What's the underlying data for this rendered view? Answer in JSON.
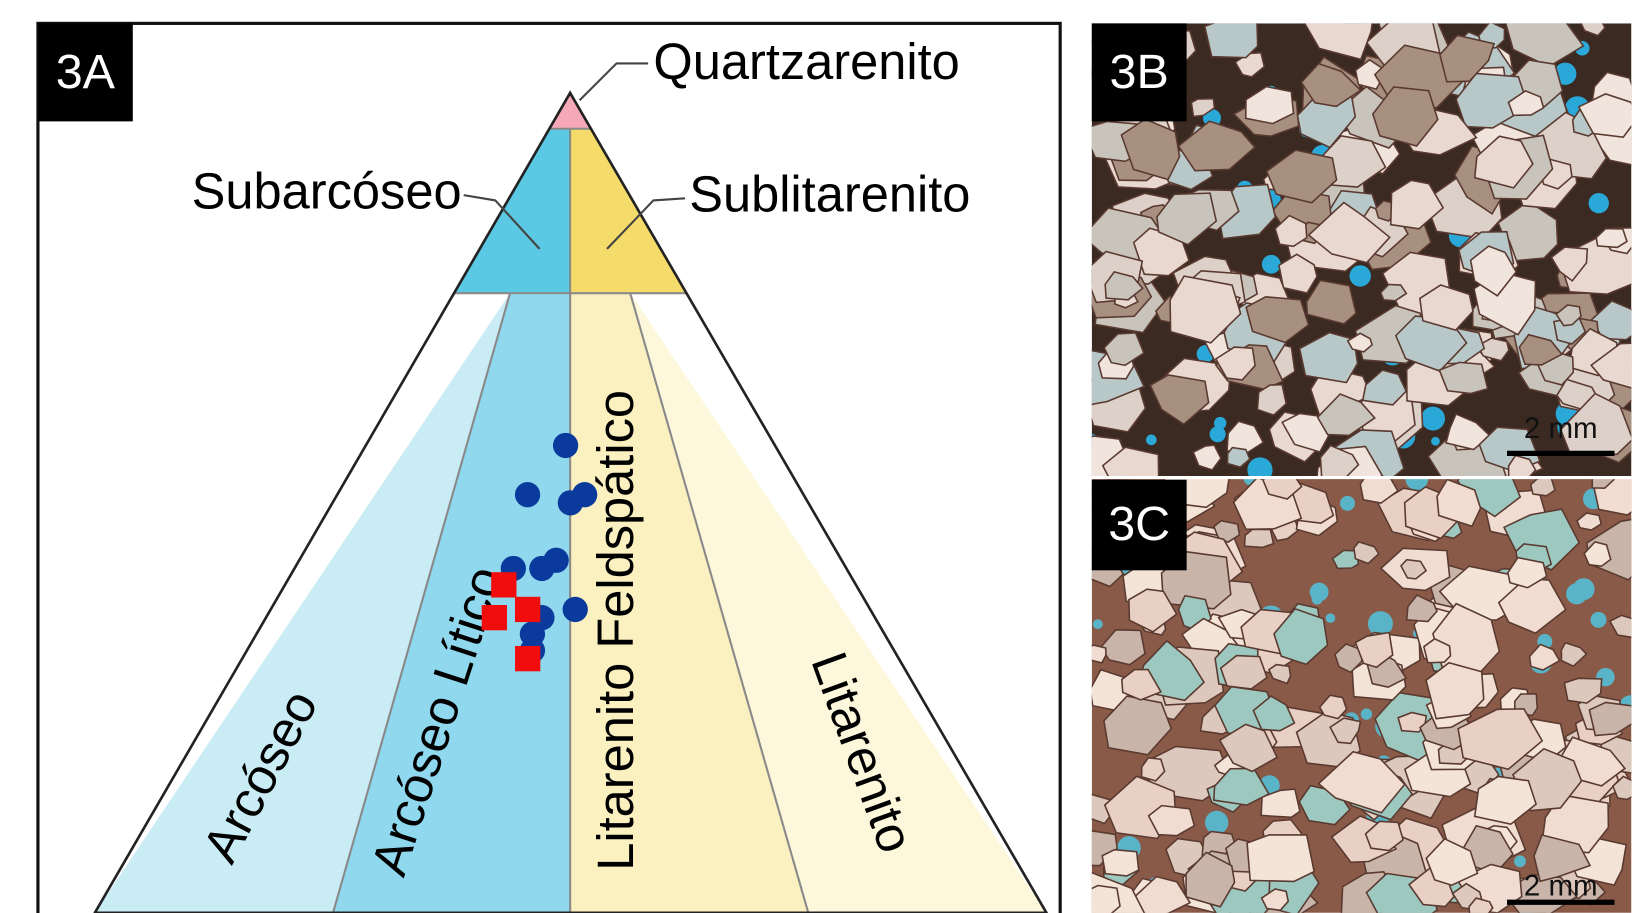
{
  "panels": {
    "a": {
      "label": "3A",
      "fields": {
        "quartzarenite": "Quartzarenito",
        "subarkose": "Subarcóseo",
        "sublitharenite": "Sublitarenito",
        "arkose": "Arcóseo",
        "lithic_arkose": "Arcóseo Lítico",
        "feldspathic_litharenite": "Litarenito Feldspático",
        "litharenite": "Litarenito"
      },
      "samples": [
        {
          "shape": "circle",
          "color": "#0a3a9c",
          "points": [
            {
              "Q": 57,
              "F": 22,
              "L": 21
            },
            {
              "Q": 51,
              "F": 29,
              "L": 20
            },
            {
              "Q": 51,
              "F": 23,
              "L": 26
            },
            {
              "Q": 50,
              "F": 25,
              "L": 25
            },
            {
              "Q": 43,
              "F": 30,
              "L": 27
            },
            {
              "Q": 42,
              "F": 35,
              "L": 23
            },
            {
              "Q": 42,
              "F": 32,
              "L": 26
            },
            {
              "Q": 37,
              "F": 31,
              "L": 32
            },
            {
              "Q": 36,
              "F": 35,
              "L": 29
            },
            {
              "Q": 34,
              "F": 37,
              "L": 29
            },
            {
              "Q": 32,
              "F": 38,
              "L": 30
            }
          ]
        },
        {
          "shape": "square",
          "color": "#f20d0d",
          "points": [
            {
              "Q": 40,
              "F": 37,
              "L": 23
            },
            {
              "Q": 36,
              "F": 40,
              "L": 24
            },
            {
              "Q": 37,
              "F": 36,
              "L": 27
            },
            {
              "Q": 31,
              "F": 39,
              "L": 30
            }
          ]
        }
      ]
    },
    "b": {
      "label": "3B",
      "scale": "2 mm"
    },
    "c": {
      "label": "3C",
      "scale": "2 mm"
    }
  }
}
